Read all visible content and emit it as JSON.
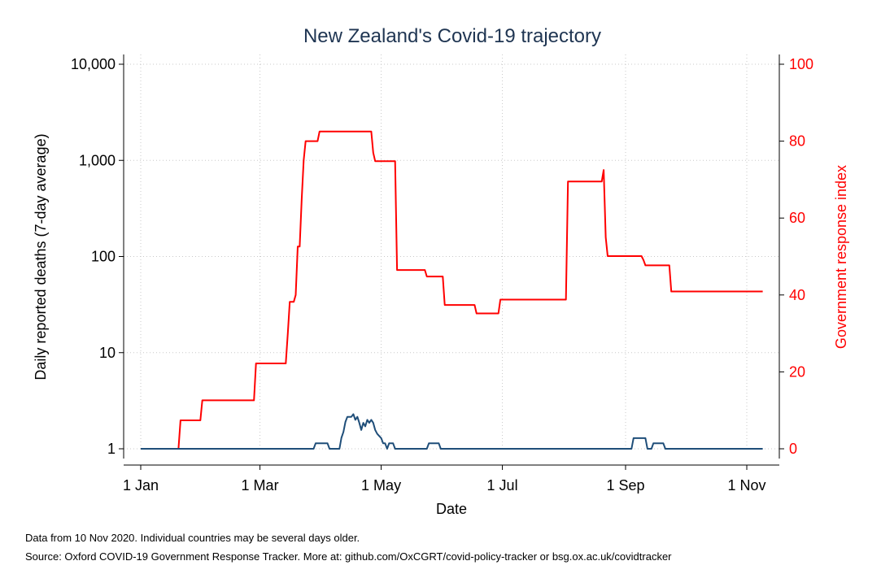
{
  "chart_data": {
    "type": "line",
    "title": "New Zealand's Covid-19 trajectory",
    "xlabel": "Date",
    "ylabel_left": "Daily reported deaths (7-day average)",
    "ylabel_right": "Government response index",
    "x_ticks": [
      "1 Jan",
      "1 Mar",
      "1 May",
      "1 Jul",
      "1 Sep",
      "1 Nov"
    ],
    "x_tick_days": [
      0,
      60,
      121,
      182,
      244,
      305
    ],
    "xlim_days": [
      0,
      314
    ],
    "y_left": {
      "scale": "log",
      "range": [
        1,
        10000
      ],
      "ticks": [
        1,
        10,
        100,
        1000,
        10000
      ],
      "tick_labels": [
        "1",
        "10",
        "100",
        "1,000",
        "10,000"
      ]
    },
    "y_right": {
      "scale": "linear",
      "range": [
        0,
        100
      ],
      "ticks": [
        0,
        20,
        40,
        60,
        80,
        100
      ],
      "tick_labels": [
        "0",
        "20",
        "40",
        "60",
        "80",
        "100"
      ]
    },
    "grid": true,
    "colors": {
      "deaths": "#1f4e79",
      "response": "#ff0000",
      "title": "#1f3552"
    },
    "series": [
      {
        "axis": "right",
        "points": [
          [
            0,
            0
          ],
          [
            19,
            0
          ],
          [
            20,
            7.4
          ],
          [
            30,
            7.4
          ],
          [
            31,
            12.6
          ],
          [
            57,
            12.6
          ],
          [
            58,
            22.2
          ],
          [
            73,
            22.2
          ],
          [
            74,
            30
          ],
          [
            75,
            38.2
          ],
          [
            77,
            38.2
          ],
          [
            78,
            40
          ],
          [
            79,
            52.6
          ],
          [
            80,
            52.6
          ],
          [
            81,
            65
          ],
          [
            82,
            75
          ],
          [
            83,
            80
          ],
          [
            89,
            80
          ],
          [
            90,
            82.5
          ],
          [
            116,
            82.5
          ],
          [
            117,
            77
          ],
          [
            118,
            74.8
          ],
          [
            128,
            74.8
          ],
          [
            129,
            46.5
          ],
          [
            143,
            46.5
          ],
          [
            144,
            44.8
          ],
          [
            152,
            44.8
          ],
          [
            153,
            37.4
          ],
          [
            168,
            37.4
          ],
          [
            169,
            35.2
          ],
          [
            180,
            35.2
          ],
          [
            181,
            38.8
          ],
          [
            214,
            38.8
          ],
          [
            215,
            69.5
          ],
          [
            232,
            69.5
          ],
          [
            233,
            72.5
          ],
          [
            234,
            55
          ],
          [
            235,
            50.1
          ],
          [
            252,
            50.1
          ],
          [
            253,
            49.1
          ],
          [
            254,
            47.7
          ],
          [
            266,
            47.7
          ],
          [
            267,
            40.9
          ],
          [
            313,
            40.9
          ]
        ]
      },
      {
        "axis": "left",
        "points": [
          [
            0,
            1
          ],
          [
            87,
            1
          ],
          [
            88,
            1.14
          ],
          [
            94,
            1.14
          ],
          [
            95,
            1
          ],
          [
            100,
            1
          ],
          [
            101,
            1.3
          ],
          [
            102,
            1.5
          ],
          [
            103,
            1.9
          ],
          [
            104,
            2.15
          ],
          [
            106,
            2.15
          ],
          [
            107,
            2.29
          ],
          [
            108,
            2
          ],
          [
            109,
            2.15
          ],
          [
            110,
            1.86
          ],
          [
            111,
            1.57
          ],
          [
            112,
            1.86
          ],
          [
            113,
            1.71
          ],
          [
            114,
            2
          ],
          [
            115,
            1.86
          ],
          [
            116,
            2
          ],
          [
            117,
            1.86
          ],
          [
            118,
            1.57
          ],
          [
            119,
            1.43
          ],
          [
            121,
            1.29
          ],
          [
            122,
            1.14
          ],
          [
            123,
            1.14
          ],
          [
            124,
            1
          ],
          [
            125,
            1.14
          ],
          [
            127,
            1.14
          ],
          [
            128,
            1
          ],
          [
            144,
            1
          ],
          [
            145,
            1.14
          ],
          [
            150,
            1.14
          ],
          [
            151,
            1
          ],
          [
            247,
            1
          ],
          [
            248,
            1.29
          ],
          [
            254,
            1.29
          ],
          [
            255,
            1
          ],
          [
            257,
            1
          ],
          [
            258,
            1.14
          ],
          [
            263,
            1.14
          ],
          [
            264,
            1
          ],
          [
            313,
            1
          ]
        ]
      }
    ]
  },
  "footer": {
    "note": "Data from 10 Nov 2020. Individual countries may be several days older.",
    "source": "Source: Oxford COVID-19 Government Response Tracker. More at: github.com/OxCGRT/covid-policy-tracker or bsg.ox.ac.uk/covidtracker"
  }
}
